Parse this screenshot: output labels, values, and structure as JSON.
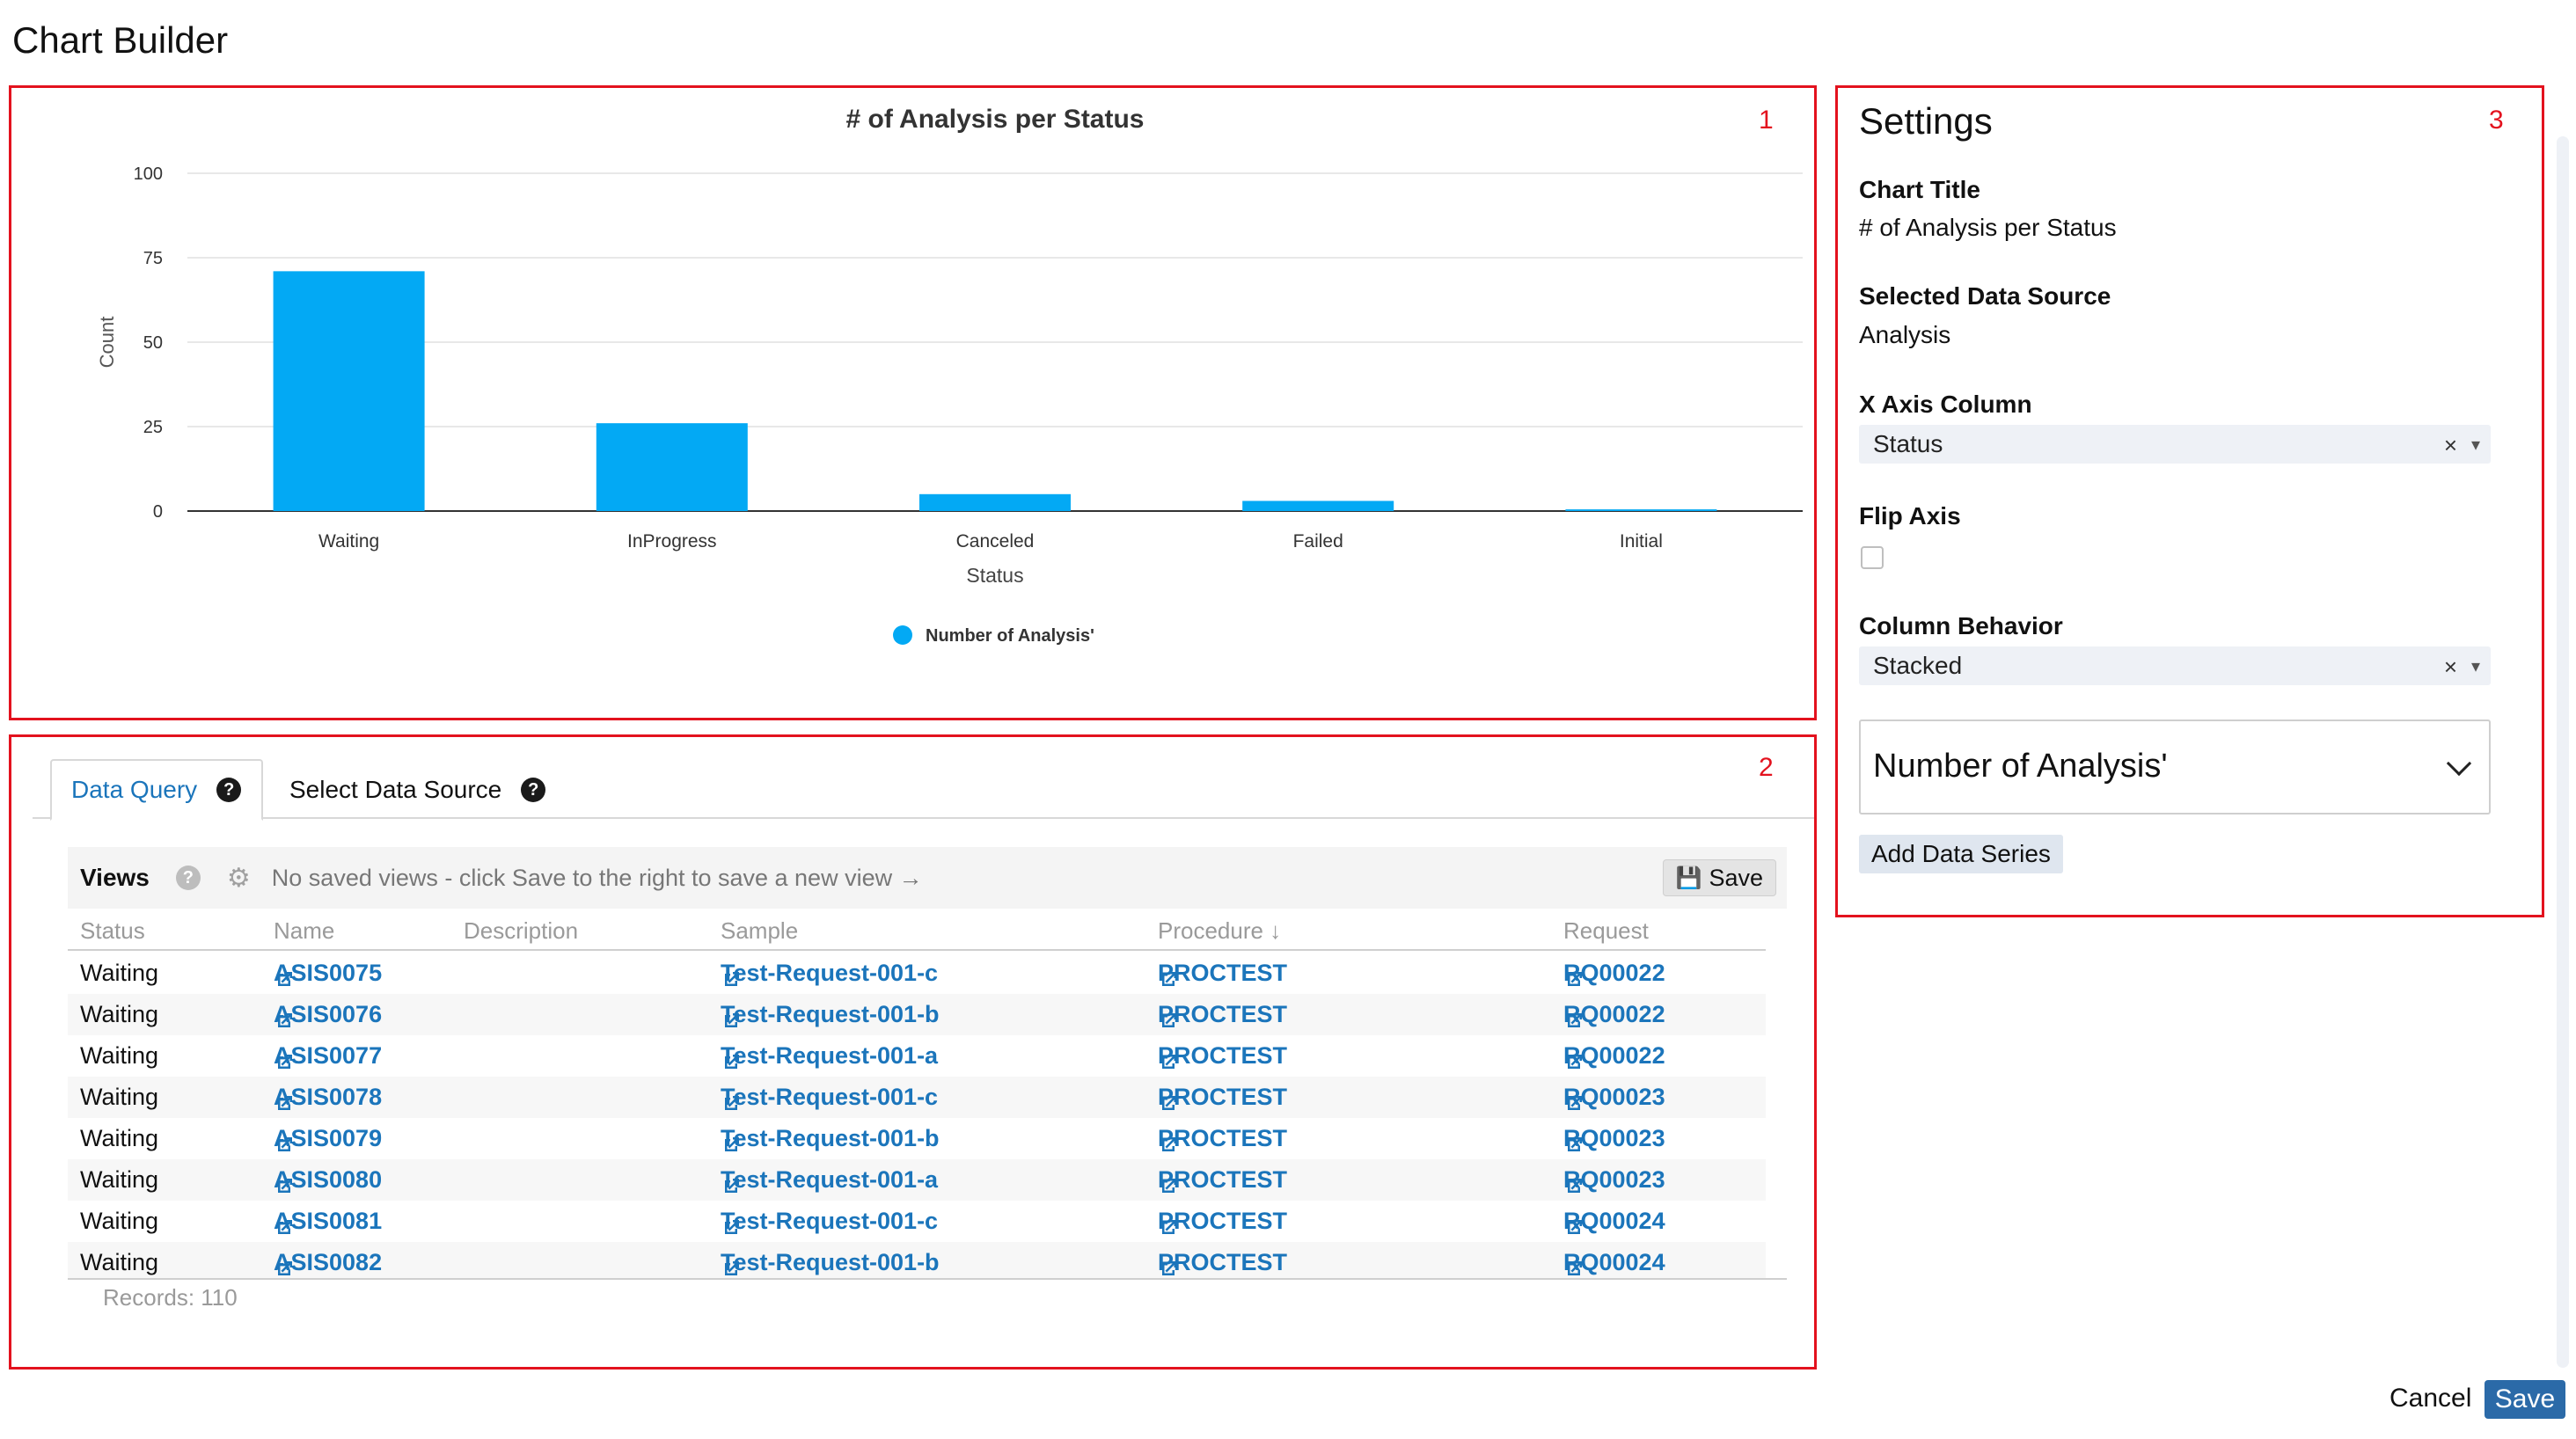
{
  "app": {
    "title": "Chart Builder"
  },
  "boxes": {
    "chart": "1",
    "data": "2",
    "settings": "3"
  },
  "colors": {
    "bar": "#03a9f4",
    "accent": "#1b75bb",
    "highlight_border": "#e3121e",
    "save_button": "#2b6aa8"
  },
  "chart_data": {
    "type": "bar",
    "title": "# of Analysis per Status",
    "xlabel": "Status",
    "ylabel": "Count",
    "categories": [
      "Waiting",
      "InProgress",
      "Canceled",
      "Failed",
      "Initial"
    ],
    "series": [
      {
        "name": "Number of Analysis'",
        "values": [
          71,
          26,
          5,
          3,
          0.5
        ],
        "color": "#03a9f4"
      }
    ],
    "ylim": [
      0,
      100
    ],
    "yticks": [
      0,
      25,
      50,
      75,
      100
    ],
    "grid": true,
    "legend": "bottom-center"
  },
  "data_query": {
    "tabs": [
      {
        "label": "Data Query",
        "active": true,
        "help": "?"
      },
      {
        "label": "Select Data Source",
        "active": false,
        "help": "?"
      }
    ],
    "views": {
      "label": "Views",
      "help": "?",
      "message": "No saved views - click Save to the right to save a new view →",
      "save_label": "Save"
    },
    "columns": [
      "Status",
      "Name",
      "Description",
      "Sample",
      "Procedure ↓",
      "Request"
    ],
    "rows": [
      {
        "status": "Waiting",
        "name": "ASIS0075",
        "description": "",
        "sample": "Test-Request-001-c",
        "procedure": "PROCTEST",
        "request": "RQ00022"
      },
      {
        "status": "Waiting",
        "name": "ASIS0076",
        "description": "",
        "sample": "Test-Request-001-b",
        "procedure": "PROCTEST",
        "request": "RQ00022"
      },
      {
        "status": "Waiting",
        "name": "ASIS0077",
        "description": "",
        "sample": "Test-Request-001-a",
        "procedure": "PROCTEST",
        "request": "RQ00022"
      },
      {
        "status": "Waiting",
        "name": "ASIS0078",
        "description": "",
        "sample": "Test-Request-001-c",
        "procedure": "PROCTEST",
        "request": "RQ00023"
      },
      {
        "status": "Waiting",
        "name": "ASIS0079",
        "description": "",
        "sample": "Test-Request-001-b",
        "procedure": "PROCTEST",
        "request": "RQ00023"
      },
      {
        "status": "Waiting",
        "name": "ASIS0080",
        "description": "",
        "sample": "Test-Request-001-a",
        "procedure": "PROCTEST",
        "request": "RQ00023"
      },
      {
        "status": "Waiting",
        "name": "ASIS0081",
        "description": "",
        "sample": "Test-Request-001-c",
        "procedure": "PROCTEST",
        "request": "RQ00024"
      },
      {
        "status": "Waiting",
        "name": "ASIS0082",
        "description": "",
        "sample": "Test-Request-001-b",
        "procedure": "PROCTEST",
        "request": "RQ00024"
      }
    ],
    "records": "Records: 110"
  },
  "settings": {
    "title": "Settings",
    "chart_title_label": "Chart Title",
    "chart_title_value": "# of Analysis per Status",
    "data_source_label": "Selected Data Source",
    "data_source_value": "Analysis",
    "x_axis_label": "X Axis Column",
    "x_axis_value": "Status",
    "flip_axis_label": "Flip Axis",
    "flip_axis_checked": false,
    "column_behavior_label": "Column Behavior",
    "column_behavior_value": "Stacked",
    "series_label": "Number of Analysis'",
    "add_series_label": "Add Data Series",
    "clear_glyph": "×",
    "caret_glyph": "▾"
  },
  "footer": {
    "cancel_label": "Cancel",
    "save_label": "Save"
  }
}
